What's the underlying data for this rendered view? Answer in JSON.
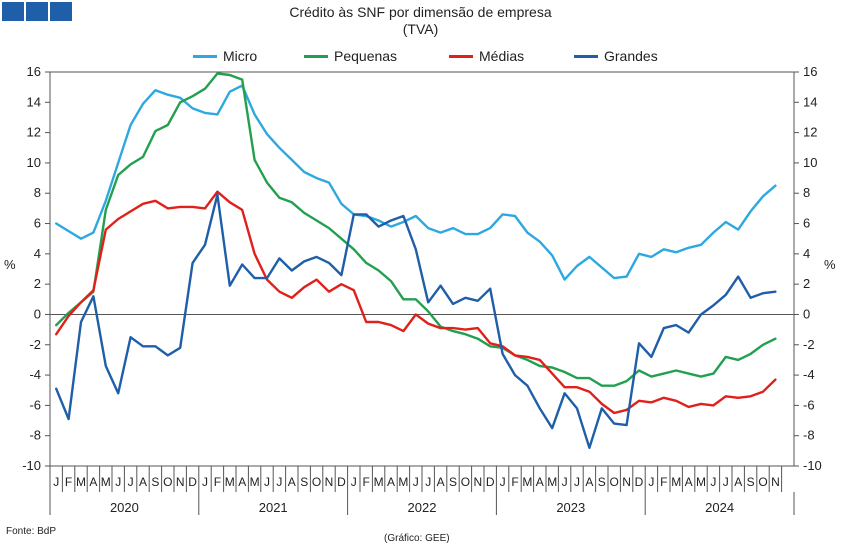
{
  "header": {
    "title_line1": "Crédito às SNF por dimensão de empresa",
    "title_line2": "(TVA)"
  },
  "footer": {
    "source": "Fonte: BdP",
    "credit": "(Gráfico: GEE)"
  },
  "chart_data": {
    "type": "line",
    "title": "Crédito às SNF por dimensão de empresa",
    "subtitle": "(TVA)",
    "ylabel": "%",
    "ylabel_right": "%",
    "ylim": [
      -10,
      16
    ],
    "yticks": [
      -10,
      -8,
      -6,
      -4,
      -2,
      0,
      2,
      4,
      6,
      8,
      10,
      12,
      14,
      16
    ],
    "legend_position": "top",
    "month_labels": [
      "J",
      "F",
      "M",
      "A",
      "M",
      "J",
      "J",
      "A",
      "S",
      "O",
      "N",
      "D",
      "J",
      "F",
      "M",
      "A",
      "M",
      "J",
      "J",
      "A",
      "S",
      "O",
      "N",
      "D",
      "J",
      "F",
      "M",
      "A",
      "M",
      "J",
      "J",
      "A",
      "S",
      "O",
      "N",
      "D",
      "J",
      "F",
      "M",
      "A",
      "M",
      "J",
      "J",
      "A",
      "S",
      "O",
      "N",
      "D",
      "J",
      "F",
      "M",
      "A",
      "M",
      "J",
      "J",
      "A",
      "S",
      "O",
      "N"
    ],
    "years": [
      "2020",
      "2021",
      "2022",
      "2023",
      "2024"
    ],
    "series": [
      {
        "name": "Micro",
        "color": "#2ea8e0",
        "values": [
          6.0,
          5.5,
          5.0,
          5.4,
          7.5,
          10.0,
          12.5,
          13.9,
          14.8,
          14.5,
          14.3,
          13.6,
          13.3,
          13.2,
          14.7,
          15.1,
          13.2,
          11.9,
          11.0,
          10.2,
          9.4,
          9.0,
          8.7,
          7.3,
          6.6,
          6.5,
          6.2,
          5.8,
          6.1,
          6.5,
          5.7,
          5.4,
          5.7,
          5.3,
          5.3,
          5.7,
          6.6,
          6.5,
          5.4,
          4.8,
          3.9,
          2.3,
          3.2,
          3.8,
          3.1,
          2.4,
          2.5,
          4.0,
          3.8,
          4.3,
          4.1,
          4.4,
          4.6,
          5.4,
          6.1,
          5.6,
          6.8,
          7.8,
          8.5
        ]
      },
      {
        "name": "Pequenas",
        "color": "#22a050",
        "values": [
          -0.7,
          0.1,
          0.8,
          1.5,
          6.9,
          9.2,
          9.9,
          10.4,
          12.1,
          12.5,
          14.0,
          14.4,
          14.9,
          15.9,
          15.8,
          15.5,
          10.2,
          8.7,
          7.7,
          7.4,
          6.7,
          6.2,
          5.7,
          5.0,
          4.3,
          3.4,
          2.9,
          2.2,
          1.0,
          1.0,
          0.2,
          -0.8,
          -1.1,
          -1.3,
          -1.6,
          -2.1,
          -2.2,
          -2.7,
          -3.0,
          -3.4,
          -3.5,
          -3.8,
          -4.2,
          -4.2,
          -4.7,
          -4.7,
          -4.4,
          -3.7,
          -4.1,
          -3.9,
          -3.7,
          -3.9,
          -4.1,
          -3.9,
          -2.8,
          -3.0,
          -2.6,
          -2.0,
          -1.6
        ]
      },
      {
        "name": "Médias",
        "color": "#e0201a",
        "values": [
          -1.3,
          -0.1,
          0.8,
          1.6,
          5.6,
          6.3,
          6.8,
          7.3,
          7.5,
          7.0,
          7.1,
          7.1,
          7.0,
          8.1,
          7.4,
          6.9,
          4.0,
          2.3,
          1.5,
          1.1,
          1.8,
          2.3,
          1.5,
          2.0,
          1.6,
          -0.5,
          -0.5,
          -0.7,
          -1.1,
          0.0,
          -0.6,
          -0.9,
          -0.9,
          -1.0,
          -0.9,
          -1.9,
          -2.1,
          -2.7,
          -2.8,
          -3.0,
          -3.9,
          -4.8,
          -4.8,
          -5.1,
          -5.9,
          -6.5,
          -6.3,
          -5.7,
          -5.8,
          -5.5,
          -5.7,
          -6.1,
          -5.9,
          -6.0,
          -5.4,
          -5.5,
          -5.4,
          -5.1,
          -4.3
        ]
      },
      {
        "name": "Grandes",
        "color": "#1f5ea8",
        "values": [
          -4.9,
          -6.9,
          -0.5,
          1.2,
          -3.4,
          -5.2,
          -1.5,
          -2.1,
          -2.1,
          -2.7,
          -2.2,
          3.4,
          4.6,
          7.9,
          1.9,
          3.3,
          2.4,
          2.4,
          3.7,
          2.9,
          3.5,
          3.8,
          3.4,
          2.6,
          6.6,
          6.6,
          5.8,
          6.2,
          6.5,
          4.3,
          0.8,
          1.9,
          0.7,
          1.1,
          0.9,
          1.7,
          -2.6,
          -4.0,
          -4.7,
          -6.2,
          -7.5,
          -5.2,
          -6.2,
          -8.8,
          -6.2,
          -7.2,
          -7.3,
          -1.9,
          -2.8,
          -0.9,
          -0.7,
          -1.2,
          0.0,
          0.6,
          1.3,
          2.5,
          1.1,
          1.4,
          1.5
        ]
      }
    ]
  }
}
